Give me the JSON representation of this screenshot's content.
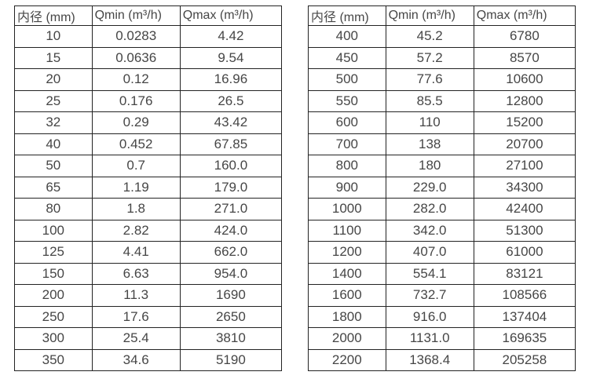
{
  "page": {
    "background_color": "#ffffff",
    "border_color": "#232323",
    "text_color": "#464646"
  },
  "tables": [
    {
      "title": "flow-table-dn10-350",
      "headers": [
        "内径 (mm)",
        "Qmin (m³/h)",
        "Qmax (m³/h)"
      ],
      "rows": [
        [
          "10",
          "0.0283",
          "4.42"
        ],
        [
          "15",
          "0.0636",
          "9.54"
        ],
        [
          "20",
          "0.12",
          "16.96"
        ],
        [
          "25",
          "0.176",
          "26.5"
        ],
        [
          "32",
          "0.29",
          "43.42"
        ],
        [
          "40",
          "0.452",
          "67.85"
        ],
        [
          "50",
          "0.7",
          "160.0"
        ],
        [
          "65",
          "1.19",
          "179.0"
        ],
        [
          "80",
          "1.8",
          "271.0"
        ],
        [
          "100",
          "2.82",
          "424.0"
        ],
        [
          "125",
          "4.41",
          "662.0"
        ],
        [
          "150",
          "6.63",
          "954.0"
        ],
        [
          "200",
          "11.3",
          "1690"
        ],
        [
          "250",
          "17.6",
          "2650"
        ],
        [
          "300",
          "25.4",
          "3810"
        ],
        [
          "350",
          "34.6",
          "5190"
        ]
      ]
    },
    {
      "title": "flow-table-dn400-2200",
      "headers": [
        "内径 (mm)",
        "Qmin (m³/h)",
        "Qmax (m³/h)"
      ],
      "rows": [
        [
          "400",
          "45.2",
          "6780"
        ],
        [
          "450",
          "57.2",
          "8570"
        ],
        [
          "500",
          "77.6",
          "10600"
        ],
        [
          "550",
          "85.5",
          "12800"
        ],
        [
          "600",
          "110",
          "15200"
        ],
        [
          "700",
          "138",
          "20700"
        ],
        [
          "800",
          "180",
          "27100"
        ],
        [
          "900",
          "229.0",
          "34300"
        ],
        [
          "1000",
          "282.0",
          "42400"
        ],
        [
          "1100",
          "342.0",
          "51300"
        ],
        [
          "1200",
          "407.0",
          "61000"
        ],
        [
          "1400",
          "554.1",
          "83121"
        ],
        [
          "1600",
          "732.7",
          "108566"
        ],
        [
          "1800",
          "916.0",
          "137404"
        ],
        [
          "2000",
          "1131.0",
          "169635"
        ],
        [
          "2200",
          "1368.4",
          "205258"
        ]
      ]
    }
  ]
}
